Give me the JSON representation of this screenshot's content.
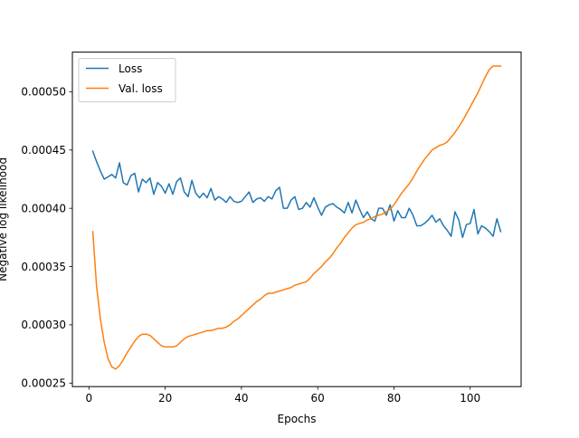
{
  "chart_data": {
    "type": "line",
    "title": "",
    "xlabel": "Epochs",
    "ylabel": "Negative log likelihood",
    "xlim": [
      -4.35,
      113.35
    ],
    "ylim": [
      0.000247,
      0.000534
    ],
    "xticks": [
      0,
      20,
      40,
      60,
      80,
      100
    ],
    "xtick_labels": [
      "0",
      "20",
      "40",
      "60",
      "80",
      "100"
    ],
    "yticks": [
      0.00025,
      0.0003,
      0.00035,
      0.0004,
      0.00045,
      0.0005
    ],
    "ytick_labels": [
      "0.00025",
      "0.00030",
      "0.00035",
      "0.00040",
      "0.00045",
      "0.00050"
    ],
    "grid": false,
    "legend_position": "upper-left",
    "series": [
      {
        "name": "Loss",
        "color": "#1f77b4",
        "x": [
          1,
          2,
          3,
          4,
          5,
          6,
          7,
          8,
          9,
          10,
          11,
          12,
          13,
          14,
          15,
          16,
          17,
          18,
          19,
          20,
          21,
          22,
          23,
          24,
          25,
          26,
          27,
          28,
          29,
          30,
          31,
          32,
          33,
          34,
          35,
          36,
          37,
          38,
          39,
          40,
          41,
          42,
          43,
          44,
          45,
          46,
          47,
          48,
          49,
          50,
          51,
          52,
          53,
          54,
          55,
          56,
          57,
          58,
          59,
          60,
          61,
          62,
          63,
          64,
          65,
          66,
          67,
          68,
          69,
          70,
          71,
          72,
          73,
          74,
          75,
          76,
          77,
          78,
          79,
          80,
          81,
          82,
          83,
          84,
          85,
          86,
          87,
          88,
          89,
          90,
          91,
          92,
          93,
          94,
          95,
          96,
          97,
          98,
          99,
          100,
          101,
          102,
          103,
          104,
          105,
          106,
          107,
          108
        ],
        "values": [
          0.000449,
          0.00044,
          0.000432,
          0.000425,
          0.000427,
          0.000429,
          0.000426,
          0.000439,
          0.000422,
          0.00042,
          0.000428,
          0.00043,
          0.000414,
          0.000425,
          0.000422,
          0.000426,
          0.000412,
          0.000422,
          0.000419,
          0.000413,
          0.000421,
          0.000412,
          0.000423,
          0.000426,
          0.000414,
          0.00041,
          0.000424,
          0.000413,
          0.000409,
          0.000413,
          0.000409,
          0.000417,
          0.000407,
          0.00041,
          0.000408,
          0.000405,
          0.00041,
          0.000406,
          0.000405,
          0.000406,
          0.00041,
          0.000414,
          0.000405,
          0.000408,
          0.000409,
          0.000406,
          0.00041,
          0.000408,
          0.000415,
          0.000418,
          0.0004,
          0.0004,
          0.000407,
          0.00041,
          0.000399,
          0.0004,
          0.000405,
          0.000401,
          0.000409,
          0.000401,
          0.000394,
          0.000401,
          0.000403,
          0.000404,
          0.000401,
          0.000399,
          0.000396,
          0.000405,
          0.000396,
          0.000407,
          0.000399,
          0.000392,
          0.000397,
          0.000391,
          0.000389,
          0.0004,
          0.0004,
          0.000394,
          0.000403,
          0.000389,
          0.000398,
          0.000392,
          0.000392,
          0.0004,
          0.000394,
          0.000385,
          0.000385,
          0.000387,
          0.00039,
          0.000394,
          0.000388,
          0.000391,
          0.000385,
          0.000381,
          0.000376,
          0.000397,
          0.00039,
          0.000375,
          0.000386,
          0.000387,
          0.000399,
          0.000378,
          0.000385,
          0.000383,
          0.00038,
          0.000376,
          0.000391,
          0.00038
        ]
      },
      {
        "name": "Val. loss",
        "color": "#ff7f0e",
        "x": [
          1,
          2,
          3,
          4,
          5,
          6,
          7,
          8,
          9,
          10,
          11,
          12,
          13,
          14,
          15,
          16,
          17,
          18,
          19,
          20,
          21,
          22,
          23,
          24,
          25,
          26,
          27,
          28,
          29,
          30,
          31,
          32,
          33,
          34,
          35,
          36,
          37,
          38,
          39,
          40,
          41,
          42,
          43,
          44,
          45,
          46,
          47,
          48,
          49,
          50,
          51,
          52,
          53,
          54,
          55,
          56,
          57,
          58,
          59,
          60,
          61,
          62,
          63,
          64,
          65,
          66,
          67,
          68,
          69,
          70,
          71,
          72,
          73,
          74,
          75,
          76,
          77,
          78,
          79,
          80,
          81,
          82,
          83,
          84,
          85,
          86,
          87,
          88,
          89,
          90,
          91,
          92,
          93,
          94,
          95,
          96,
          97,
          98,
          99,
          100,
          101,
          102,
          103,
          104,
          105,
          106,
          107,
          108
        ],
        "values": [
          0.00038,
          0.000333,
          0.000305,
          0.000285,
          0.000271,
          0.000264,
          0.000262,
          0.000265,
          0.00027,
          0.000276,
          0.000281,
          0.000286,
          0.00029,
          0.000292,
          0.000292,
          0.000291,
          0.000288,
          0.000285,
          0.000282,
          0.000281,
          0.000281,
          0.000281,
          0.000282,
          0.000285,
          0.000288,
          0.00029,
          0.000291,
          0.000292,
          0.000293,
          0.000294,
          0.000295,
          0.000295,
          0.000296,
          0.000297,
          0.000297,
          0.000298,
          0.0003,
          0.000303,
          0.000305,
          0.000308,
          0.000311,
          0.000314,
          0.000317,
          0.00032,
          0.000322,
          0.000325,
          0.000327,
          0.000327,
          0.000328,
          0.000329,
          0.00033,
          0.000331,
          0.000332,
          0.000334,
          0.000335,
          0.000336,
          0.000337,
          0.00034,
          0.000344,
          0.000347,
          0.00035,
          0.000354,
          0.000357,
          0.000361,
          0.000366,
          0.00037,
          0.000375,
          0.000379,
          0.000383,
          0.000386,
          0.000387,
          0.000388,
          0.00039,
          0.000391,
          0.000393,
          0.000394,
          0.000395,
          0.000397,
          0.000399,
          0.000403,
          0.000408,
          0.000413,
          0.000417,
          0.000421,
          0.000426,
          0.000432,
          0.000437,
          0.000442,
          0.000446,
          0.00045,
          0.000452,
          0.000454,
          0.000455,
          0.000457,
          0.000461,
          0.000465,
          0.00047,
          0.000475,
          0.000481,
          0.000487,
          0.000493,
          0.000499,
          0.000506,
          0.000513,
          0.000519,
          0.000522,
          0.000522,
          0.000522
        ]
      }
    ]
  }
}
